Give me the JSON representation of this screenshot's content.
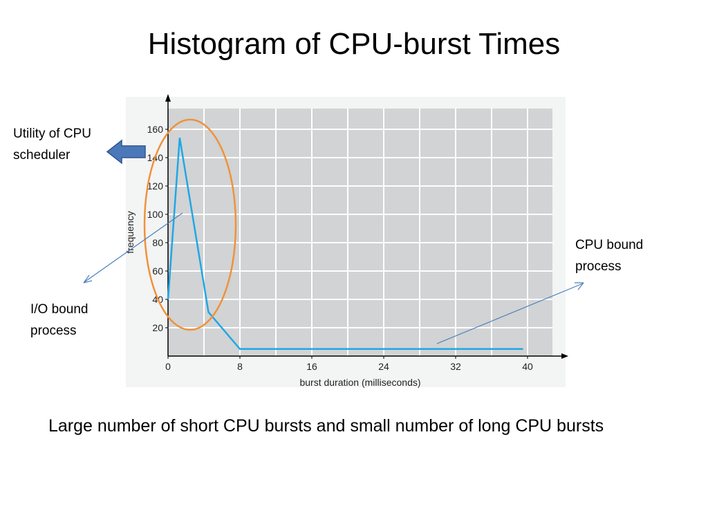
{
  "slide": {
    "title": "Histogram of CPU-burst Times",
    "caption": "Large number of short CPU bursts and small number of long CPU bursts"
  },
  "annotations": {
    "utility_line1": "Utility of CPU",
    "utility_line2": "scheduler",
    "io_line1": "I/O bound",
    "io_line2": "process",
    "cpu_line1": "CPU bound",
    "cpu_line2": "process"
  },
  "chart_data": {
    "type": "line",
    "xlabel": "burst duration (milliseconds)",
    "ylabel": "frequency",
    "xlim": [
      0,
      42
    ],
    "ylim": [
      0,
      170
    ],
    "xticks": [
      "0",
      "8",
      "16",
      "24",
      "32",
      "40"
    ],
    "yticks": [
      "20",
      "40",
      "60",
      "80",
      "100",
      "120",
      "140",
      "160"
    ],
    "grid": true,
    "series": [
      {
        "x": [
          0,
          1.3,
          4.5,
          8,
          39.5
        ],
        "values": [
          40,
          154,
          31,
          5,
          5
        ]
      }
    ]
  },
  "colors": {
    "line": "#1fa7e6",
    "plot_bg": "#d1d3d4",
    "grid": "#ffffff",
    "ellipse": "#f0913a",
    "arrow_fill": "#4a78b8",
    "pointer": "#4a7ebb"
  }
}
